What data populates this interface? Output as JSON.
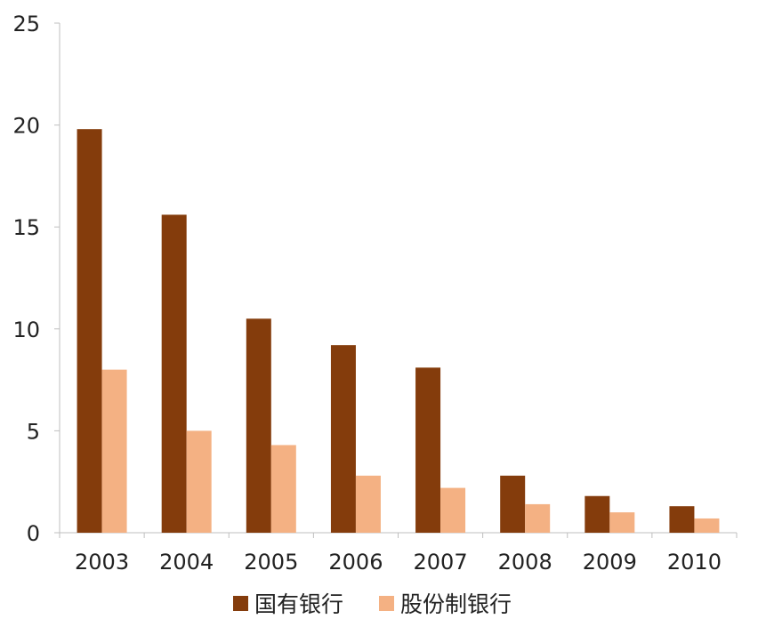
{
  "chart_data": {
    "type": "bar",
    "title": "",
    "xlabel": "",
    "ylabel": "",
    "categories": [
      "2003",
      "2004",
      "2005",
      "2006",
      "2007",
      "2008",
      "2009",
      "2010"
    ],
    "series": [
      {
        "name": "国有银行",
        "color": "#843c0c",
        "values": [
          19.8,
          15.6,
          10.5,
          9.2,
          8.1,
          2.8,
          1.8,
          1.3
        ]
      },
      {
        "name": "股份制银行",
        "color": "#f4b183",
        "values": [
          8.0,
          5.0,
          4.3,
          2.8,
          2.2,
          1.4,
          1.0,
          0.7
        ]
      }
    ],
    "ylim": [
      0,
      25
    ],
    "yticks": [
      0,
      5,
      10,
      15,
      20,
      25
    ],
    "grid": false,
    "legend_position": "bottom"
  }
}
